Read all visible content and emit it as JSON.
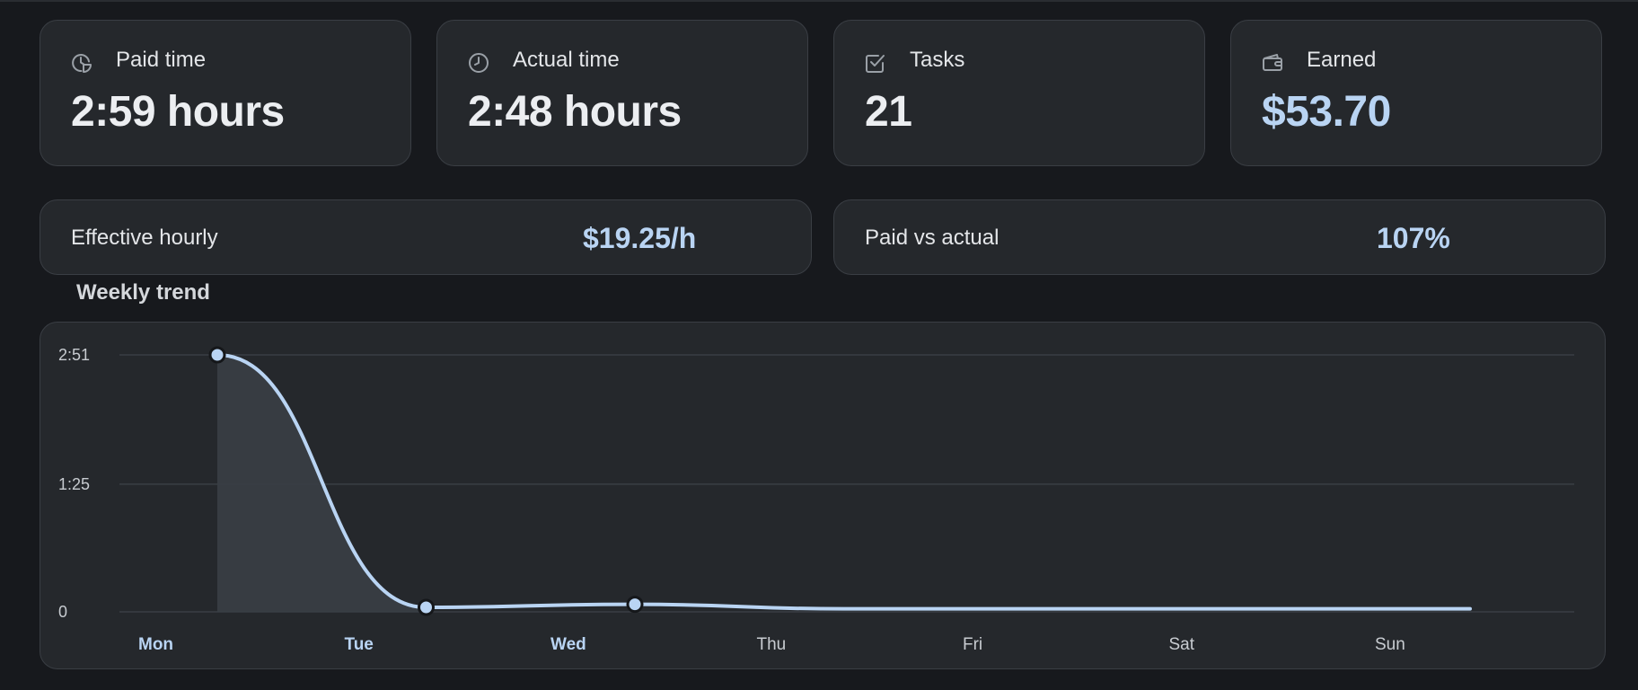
{
  "stats": [
    {
      "label": "Paid time",
      "value": "2:59 hours",
      "icon": "clock-pie-icon",
      "accent": false
    },
    {
      "label": "Actual time",
      "value": "2:48 hours",
      "icon": "clock-icon",
      "accent": false
    },
    {
      "label": "Tasks",
      "value": "21",
      "icon": "checkbox-icon",
      "accent": false
    },
    {
      "label": "Earned",
      "value": "$53.70",
      "icon": "wallet-icon",
      "accent": true
    }
  ],
  "metrics": [
    {
      "label": "Effective hourly",
      "value": "$19.25/h"
    },
    {
      "label": "Paid vs actual",
      "value": "107%"
    }
  ],
  "section_title": "Weekly trend",
  "colors": {
    "accent": "#b9d4f3",
    "card_bg": "#25282c",
    "page_bg": "#17191d"
  },
  "chart_data": {
    "type": "area",
    "categories": [
      "Mon",
      "Tue",
      "Wed",
      "Thu",
      "Fri",
      "Sat",
      "Sun"
    ],
    "active_categories": [
      "Mon",
      "Tue",
      "Wed"
    ],
    "values_minutes": [
      171,
      3,
      5,
      2,
      2,
      2,
      2
    ],
    "markers": [
      true,
      true,
      true,
      false,
      false,
      false,
      false
    ],
    "y_ticks": [
      {
        "value": 171,
        "label": "2:51"
      },
      {
        "value": 85,
        "label": "1:25"
      },
      {
        "value": 0,
        "label": "0"
      }
    ],
    "ylim": [
      0,
      171
    ],
    "grid": true,
    "title": "Weekly trend"
  }
}
